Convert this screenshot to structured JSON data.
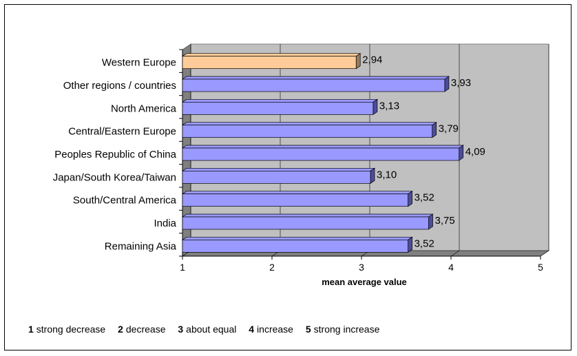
{
  "chart_data": {
    "type": "bar",
    "orientation": "horizontal",
    "categories": [
      "Western Europe",
      "Other regions / countries",
      "North America",
      "Central/Eastern Europe",
      "Peoples Republic of China",
      "Japan/South Korea/Taiwan",
      "South/Central America",
      "India",
      "Remaining Asia"
    ],
    "values": [
      2.94,
      3.93,
      3.13,
      3.79,
      4.09,
      3.1,
      3.52,
      3.75,
      3.52
    ],
    "value_labels": [
      "2,94",
      "3,93",
      "3,13",
      "3,79",
      "4,09",
      "3,10",
      "3,52",
      "3,75",
      "3,52"
    ],
    "xlabel": "mean average value",
    "xlim": [
      1,
      5
    ],
    "x_ticks": [
      "1",
      "2",
      "3",
      "4",
      "5"
    ],
    "grid": "vertical",
    "highlight_index": 0,
    "colors": {
      "bar": "#9999ff",
      "bar_side": "#4d4d99",
      "highlight": "#ffcc99",
      "highlight_side": "#997a5c",
      "plot_bg": "#c0c0c0",
      "wall": "#808080"
    }
  },
  "legend": [
    {
      "num": "1",
      "text": "strong decrease"
    },
    {
      "num": "2",
      "text": "decrease"
    },
    {
      "num": "3",
      "text": "about equal"
    },
    {
      "num": "4",
      "text": "increase"
    },
    {
      "num": "5",
      "text": "strong increase"
    }
  ]
}
